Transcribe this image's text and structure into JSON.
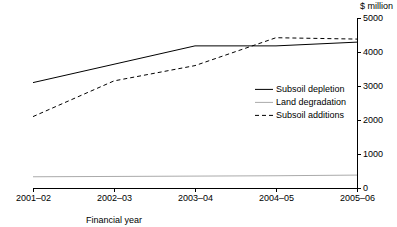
{
  "chart_data": {
    "type": "line",
    "y_label": "$ million",
    "x_label": "Financial year",
    "categories": [
      "2001–02",
      "2002–03",
      "2003–04",
      "2004–05",
      "2005–06"
    ],
    "series": [
      {
        "name": "Subsoil depletion",
        "color": "#000000",
        "line_style": "solid",
        "values": [
          3100,
          3640,
          4180,
          4180,
          4290
        ]
      },
      {
        "name": "Land degradation",
        "color": "#aaaaaa",
        "line_style": "solid",
        "values": [
          330,
          340,
          350,
          360,
          380
        ]
      },
      {
        "name": "Subsoil additions",
        "color": "#000000",
        "line_style": "dashed",
        "values": [
          2100,
          3150,
          3600,
          4420,
          4380
        ]
      }
    ],
    "ylim": [
      0,
      5000
    ],
    "yticks": [
      0,
      1000,
      2000,
      3000,
      4000,
      5000
    ],
    "legend": "right"
  }
}
